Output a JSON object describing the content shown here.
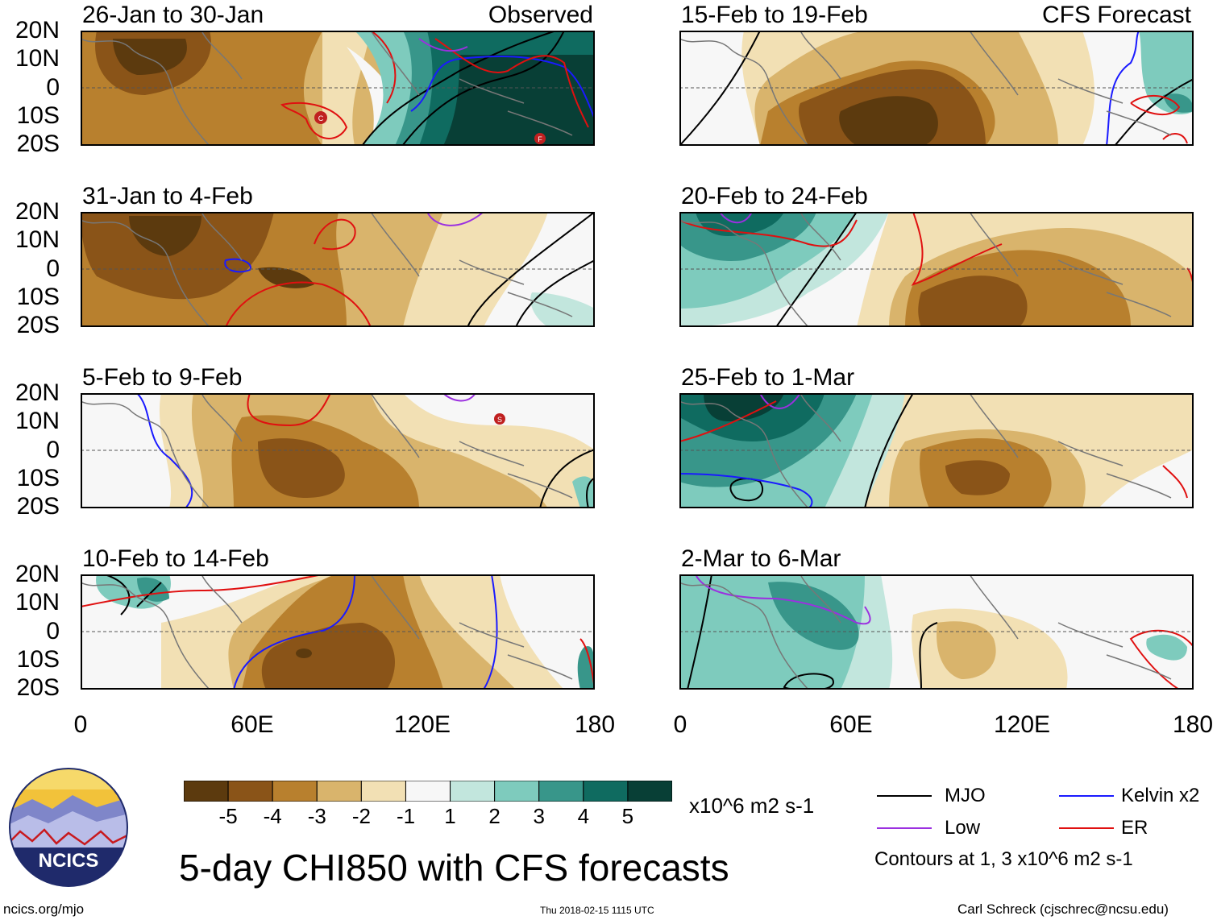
{
  "observed_label": "Observed",
  "forecast_label": "CFS Forecast",
  "lat_ticks": [
    "20N",
    "10N",
    "0",
    "10S",
    "20S"
  ],
  "lon_ticks": [
    "0",
    "60E",
    "120E",
    "180"
  ],
  "panels": [
    {
      "title": "26-Jan to 30-Jan"
    },
    {
      "title": "31-Jan to 4-Feb"
    },
    {
      "title": "5-Feb to 9-Feb"
    },
    {
      "title": "10-Feb to 14-Feb"
    },
    {
      "title": "15-Feb to 19-Feb"
    },
    {
      "title": "20-Feb to 24-Feb"
    },
    {
      "title": "25-Feb to 1-Mar"
    },
    {
      "title": "2-Mar to 6-Mar"
    }
  ],
  "colorbar": {
    "labels": [
      "-5",
      "-4",
      "-3",
      "-2",
      "-1",
      "1",
      "2",
      "3",
      "4",
      "5"
    ],
    "colors": [
      "#5c3a0e",
      "#8a5418",
      "#b8802e",
      "#d9b46c",
      "#f2e0b4",
      "#f7f7f7",
      "#c2e6dd",
      "#7ecbbd",
      "#38968a",
      "#0f6b60",
      "#083f36"
    ],
    "units": "x10^6 m2 s-1"
  },
  "legend": {
    "mjo": {
      "label": "MJO",
      "color": "#000000"
    },
    "kelvin": {
      "label": "Kelvin x2",
      "color": "#1a1aff"
    },
    "low": {
      "label": "Low",
      "color": "#9b30e0"
    },
    "er": {
      "label": "ER",
      "color": "#e01010"
    },
    "contours_note": "Contours at 1, 3 x10^6 m2 s-1"
  },
  "logo": {
    "text": "NCICS"
  },
  "main_title": "5-day CHI850 with CFS forecasts",
  "footer": {
    "url": "ncics.org/mjo",
    "timestamp": "Thu 2018-02-15 1115 UTC",
    "credit": "Carl Schreck (cjschrec@ncsu.edu)"
  },
  "storm_markers": [
    {
      "panel": 0,
      "letter": "C"
    },
    {
      "panel": 0,
      "letter": "F"
    },
    {
      "panel": 2,
      "letter": "S"
    }
  ]
}
